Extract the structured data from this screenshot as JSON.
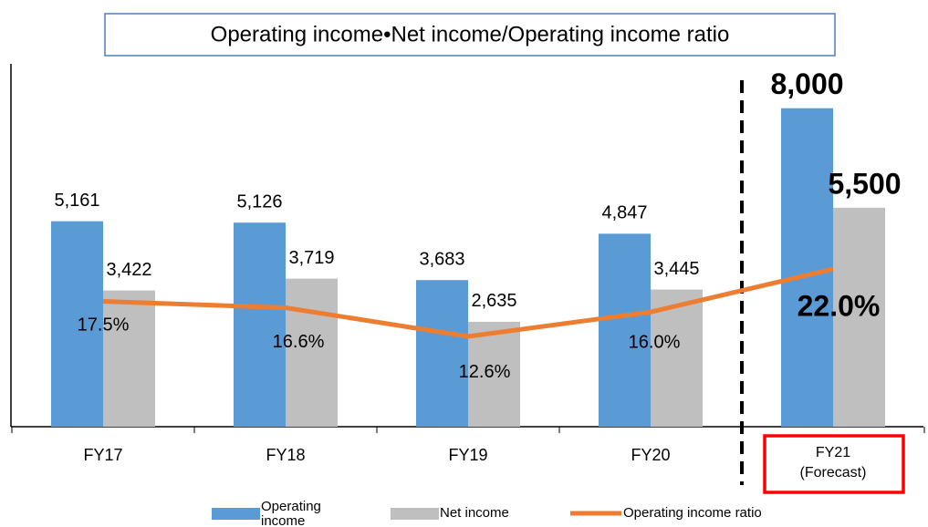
{
  "chart_data": {
    "type": "bar",
    "title": "Operating income•Net income/Operating income ratio",
    "categories": [
      "FY17",
      "FY18",
      "FY19",
      "FY20",
      "FY21\n(Forecast)"
    ],
    "ylim": [
      0,
      9000
    ],
    "y2lim": [
      0,
      50
    ],
    "series": [
      {
        "name": "Operating income",
        "color": "#5b9bd5",
        "type": "bar",
        "values": [
          5161,
          5126,
          3683,
          4847,
          8000
        ],
        "value_labels": [
          "5,161",
          "5,126",
          "3,683",
          "4,847",
          "8,000"
        ]
      },
      {
        "name": "Net income",
        "color": "#bfbfbf",
        "type": "bar",
        "values": [
          3422,
          3719,
          2635,
          3445,
          5500
        ],
        "value_labels": [
          "3,422",
          "3,719",
          "2,635",
          "3,445",
          "5,500"
        ]
      },
      {
        "name": "Operating income ratio",
        "color": "#ed7d31",
        "type": "line",
        "axis": "y2",
        "values": [
          17.5,
          16.6,
          12.6,
          16.0,
          22.0
        ],
        "value_labels": [
          "17.5%",
          "16.6%",
          "12.6%",
          "16.0%",
          "22.0%"
        ]
      }
    ]
  }
}
